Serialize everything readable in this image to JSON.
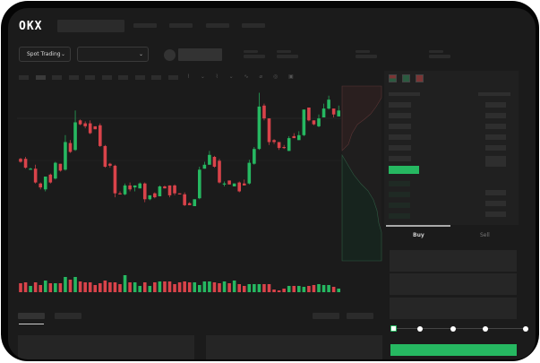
{
  "header": {
    "logo": "OKX"
  },
  "controls": {
    "market_dropdown": "Spot Trading"
  },
  "trade": {
    "buy_tab": "Buy",
    "sell_tab": "Sell",
    "slider_percent": 0
  },
  "colors": {
    "up": "#26b861",
    "down": "#d9434a",
    "background": "#1b1b1b"
  },
  "chart_data": {
    "type": "candlestick",
    "candles": [
      [
        58,
        55,
        59,
        54
      ],
      [
        58,
        49,
        60,
        48
      ],
      [
        47,
        48,
        49,
        47
      ],
      [
        48,
        34,
        52,
        33
      ],
      [
        33,
        29,
        34,
        27
      ],
      [
        27,
        40,
        40,
        25
      ],
      [
        42,
        34,
        43,
        33
      ],
      [
        38,
        54,
        55,
        37
      ],
      [
        53,
        46,
        53,
        45
      ],
      [
        47,
        75,
        82,
        46
      ],
      [
        74,
        65,
        77,
        64
      ],
      [
        67,
        95,
        107,
        66
      ],
      [
        97,
        93,
        98,
        92
      ],
      [
        94,
        91,
        96,
        89
      ],
      [
        94,
        84,
        97,
        83
      ],
      [
        91,
        88,
        91,
        88
      ],
      [
        92,
        71,
        94,
        70
      ],
      [
        71,
        50,
        72,
        49
      ],
      [
        53,
        51,
        54,
        49
      ],
      [
        51,
        23,
        52,
        19
      ],
      [
        23,
        22,
        25,
        22
      ],
      [
        22,
        31,
        33,
        21
      ],
      [
        31,
        27,
        34,
        25
      ],
      [
        29,
        31,
        31,
        25
      ],
      [
        28,
        33,
        34,
        28
      ],
      [
        33,
        17,
        34,
        14
      ],
      [
        17,
        21,
        21,
        16
      ],
      [
        23,
        19,
        24,
        18
      ],
      [
        20,
        30,
        31,
        20
      ],
      [
        30,
        28,
        31,
        28
      ],
      [
        31,
        21,
        31,
        19
      ],
      [
        31,
        23,
        32,
        21
      ],
      [
        23,
        22,
        23,
        22
      ],
      [
        22,
        11,
        24,
        10
      ],
      [
        13,
        11,
        14,
        11
      ],
      [
        10,
        17,
        17,
        10
      ],
      [
        18,
        47,
        50,
        17
      ],
      [
        48,
        52,
        55,
        48
      ],
      [
        52,
        62,
        66,
        52
      ],
      [
        60,
        50,
        61,
        49
      ],
      [
        56,
        34,
        58,
        33
      ],
      [
        33,
        33,
        35,
        30
      ],
      [
        36,
        32,
        36,
        32
      ],
      [
        30,
        33,
        33,
        30
      ],
      [
        34,
        25,
        35,
        24
      ],
      [
        33,
        31,
        37,
        31
      ],
      [
        33,
        54,
        57,
        32
      ],
      [
        53,
        68,
        70,
        52
      ],
      [
        68,
        111,
        125,
        67
      ],
      [
        112,
        99,
        114,
        97
      ],
      [
        99,
        75,
        99,
        72
      ],
      [
        77,
        75,
        78,
        73
      ],
      [
        75,
        69,
        75,
        67
      ],
      [
        70,
        69,
        72,
        68
      ],
      [
        66,
        79,
        81,
        66
      ],
      [
        81,
        79,
        84,
        79
      ],
      [
        77,
        82,
        86,
        77
      ],
      [
        82,
        108,
        108,
        81
      ],
      [
        110,
        97,
        110,
        96
      ],
      [
        97,
        93,
        97,
        92
      ],
      [
        91,
        99,
        103,
        90
      ],
      [
        100,
        109,
        114,
        100
      ],
      [
        109,
        118,
        122,
        108
      ],
      [
        109,
        103,
        109,
        100
      ],
      [
        101,
        107,
        112,
        101
      ]
    ],
    "volume": [
      10,
      11,
      7,
      11,
      8,
      13,
      10,
      10,
      10,
      17,
      14,
      17,
      12,
      11,
      11,
      8,
      10,
      13,
      11,
      11,
      9,
      19,
      11,
      11,
      7,
      11,
      7,
      11,
      12,
      12,
      12,
      9,
      11,
      12,
      11,
      11,
      8,
      12,
      12,
      11,
      10,
      12,
      10,
      13,
      9,
      7,
      9,
      9,
      9,
      9,
      9,
      3,
      2,
      4,
      7,
      7,
      7,
      6,
      7,
      8,
      9,
      8,
      8,
      6,
      4
    ]
  }
}
